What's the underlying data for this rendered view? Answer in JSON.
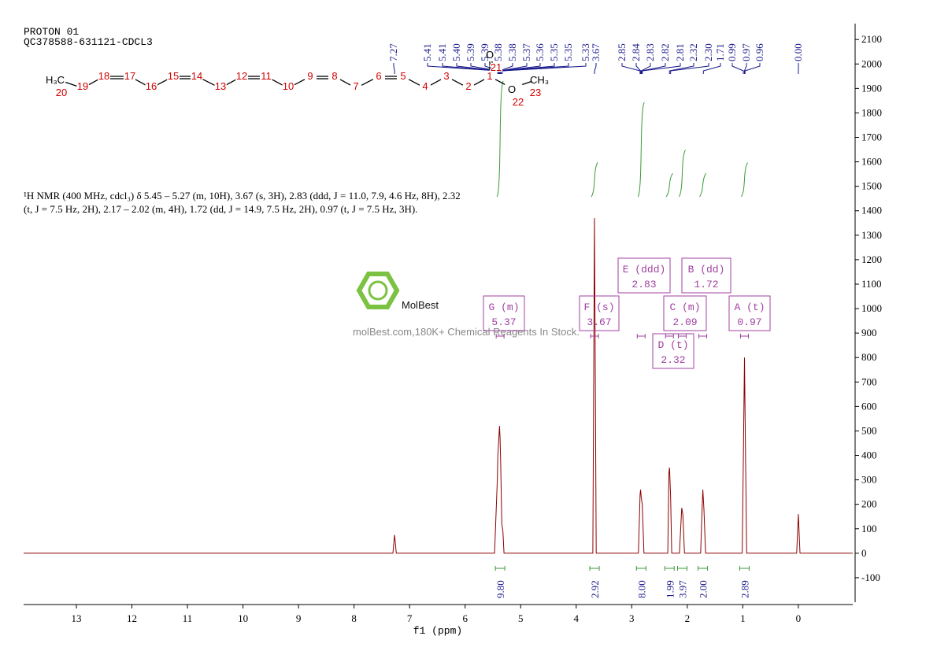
{
  "chart_data": {
    "type": "line",
    "title": "PROTON 01",
    "subtitle": "QC378588-631121-CDCL3",
    "xlabel": "f1 (ppm)",
    "x": [
      13.95,
      7.3,
      7.27,
      7.24,
      5.47,
      5.42,
      5.41,
      5.39,
      5.38,
      5.37,
      5.36,
      5.34,
      5.32,
      5.3,
      3.7,
      3.67,
      3.64,
      2.88,
      2.85,
      2.84,
      2.83,
      2.81,
      2.78,
      2.35,
      2.33,
      2.32,
      2.3,
      2.28,
      2.14,
      2.1,
      2.08,
      2.05,
      1.76,
      1.73,
      1.72,
      1.7,
      1.67,
      1.01,
      0.99,
      0.97,
      0.95,
      0.93,
      0.03,
      0,
      -0.03,
      -0.98
    ],
    "values": [
      0,
      0,
      75,
      0,
      0,
      300,
      400,
      480,
      520,
      470,
      380,
      120,
      90,
      0,
      0,
      1370,
      0,
      0,
      240,
      260,
      230,
      200,
      0,
      0,
      330,
      350,
      230,
      0,
      0,
      185,
      160,
      0,
      0,
      200,
      260,
      180,
      0,
      0,
      400,
      800,
      380,
      0,
      0,
      160,
      0,
      0
    ],
    "color": "#8b0000",
    "xlim": [
      13.95,
      -0.98
    ],
    "xticks": [
      13,
      12,
      11,
      10,
      9,
      8,
      7,
      6,
      5,
      4,
      3,
      2,
      1,
      0
    ],
    "ylim": [
      -200,
      2165
    ],
    "yticks": [
      -100,
      0,
      100,
      200,
      300,
      400,
      500,
      600,
      700,
      800,
      900,
      1000,
      1100,
      1200,
      1300,
      1400,
      1500,
      1600,
      1700,
      1800,
      1900,
      2000,
      2100
    ],
    "peak_labels": [
      7.27,
      5.41,
      5.41,
      {
        "value": 5.4,
        "label": "5.40"
      },
      5.39,
      5.39,
      5.38,
      5.38,
      5.37,
      5.36,
      5.35,
      5.35,
      5.33,
      3.67,
      2.85,
      2.84,
      2.83,
      2.82,
      2.81,
      2.32,
      {
        "value": 2.3,
        "label": "2.30"
      },
      1.71,
      0.99,
      0.97,
      0.96,
      {
        "value": 0,
        "label": "0.00"
      }
    ],
    "multiplets": [
      {
        "name": "A (t)",
        "shift": 0.97
      },
      {
        "name": "B (dd)",
        "shift": 1.72
      },
      {
        "name": "C (m)",
        "shift": 2.09
      },
      {
        "name": "D (t)",
        "shift": 2.32
      },
      {
        "name": "E (ddd)",
        "shift": 2.83
      },
      {
        "name": "F (s)",
        "shift": 3.67
      },
      {
        "name": "G (m)",
        "shift": 5.37
      }
    ],
    "integrals": [
      {
        "value": 9.8,
        "label": "9.80",
        "shift": 5.37
      },
      {
        "value": 2.92,
        "shift": 3.67
      },
      {
        "value": 8,
        "label": "8.00",
        "shift": 2.83
      },
      {
        "value": 1.99,
        "shift": 2.32
      },
      {
        "value": 3.97,
        "shift": 2.09
      },
      {
        "value": 2,
        "label": "2.00",
        "shift": 1.72
      },
      {
        "value": 2.89,
        "shift": 0.97
      }
    ],
    "description": "¹H NMR (400 MHz, cdcl₃) δ 5.45 – 5.27 (m, 10H), 3.67 (s, 3H), 2.83 (ddd, J = 11.0, 7.9, 4.6 Hz, 8H), 2.32 (t, J = 7.5 Hz, 2H), 2.17 – 2.02 (m, 4H), 1.72 (dd, J = 14.9, 7.5 Hz, 2H), 0.97 (t, J = 7.5 Hz, 3H)."
  },
  "molecule": {
    "atoms": [
      {
        "symbol": "H₃C",
        "number": 20
      },
      {
        "number": 19
      },
      {
        "number": 18
      },
      {
        "number": 17
      },
      {
        "number": 16
      },
      {
        "number": 15
      },
      {
        "number": 14
      },
      {
        "number": 13
      },
      {
        "number": 12
      },
      {
        "number": 11
      },
      {
        "number": 10
      },
      {
        "number": 9
      },
      {
        "number": 8
      },
      {
        "number": 7
      },
      {
        "number": 6
      },
      {
        "number": 5
      },
      {
        "number": 4
      },
      {
        "number": 3
      },
      {
        "number": 2
      },
      {
        "number": 1
      },
      {
        "symbol": "O",
        "number": 21
      },
      {
        "symbol": "O",
        "number": 22
      },
      {
        "symbol": "CH₃",
        "number": 23
      }
    ]
  },
  "watermark": {
    "brand": "MolBest",
    "tagline": "molBest.com,180K+ Chemical Reagents In Stock."
  }
}
